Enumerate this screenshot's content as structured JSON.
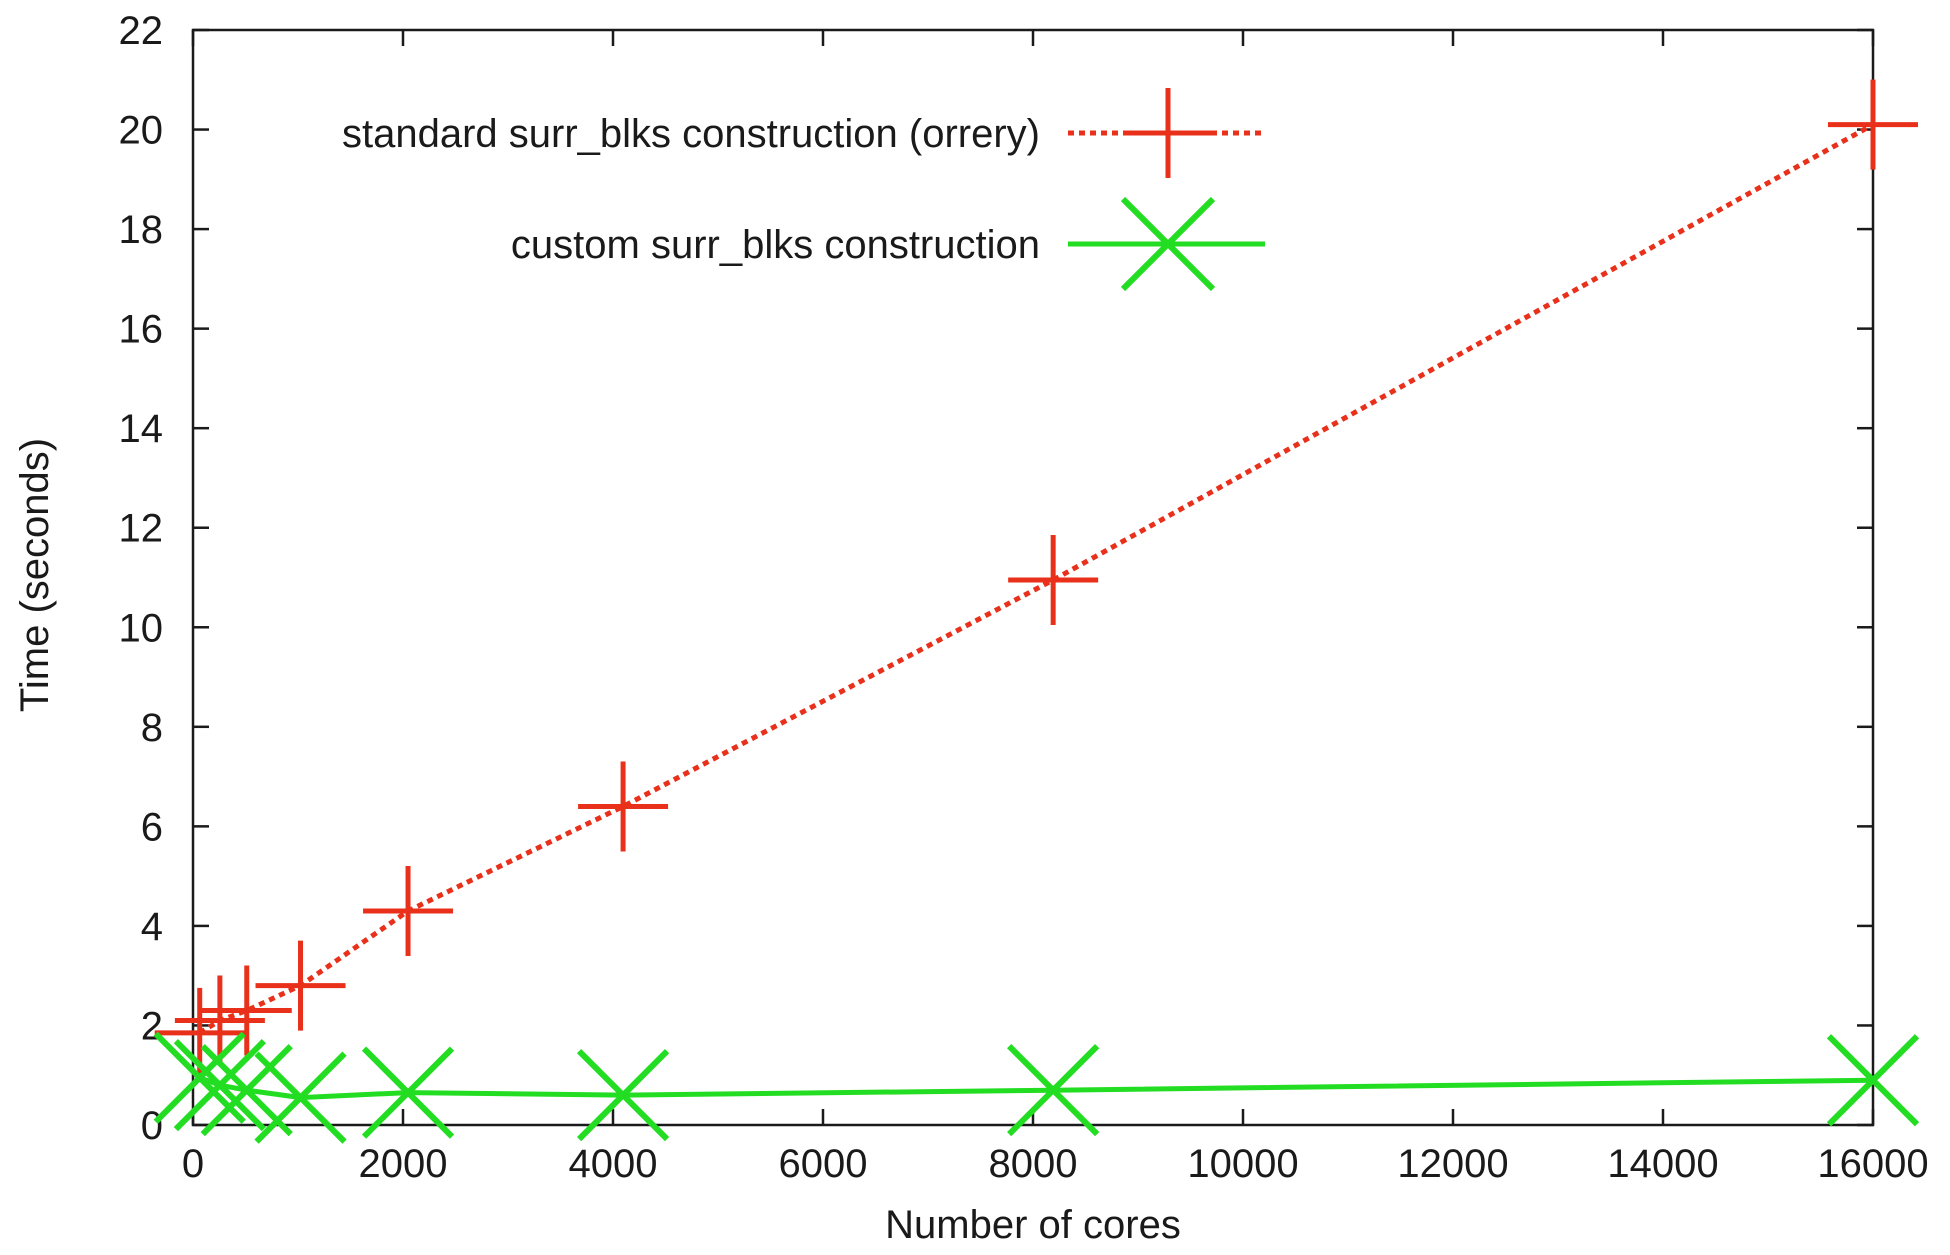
{
  "chart_data": {
    "type": "line",
    "title": "",
    "xlabel": "Number of cores",
    "ylabel": "Time (seconds)",
    "xlim": [
      0,
      16000
    ],
    "ylim": [
      0,
      22
    ],
    "x_ticks": [
      0,
      2000,
      4000,
      6000,
      8000,
      10000,
      12000,
      14000,
      16000
    ],
    "y_ticks": [
      0,
      2,
      4,
      6,
      8,
      10,
      12,
      14,
      16,
      18,
      20,
      22
    ],
    "grid": false,
    "legend_position": "top-left",
    "series": [
      {
        "name": "standard surr_blks construction (orrery)",
        "color": "#e8301a",
        "line_style": "dotted",
        "marker": "plus",
        "points": [
          [
            64,
            1.85
          ],
          [
            256,
            2.1
          ],
          [
            512,
            2.3
          ],
          [
            1024,
            2.8
          ],
          [
            2048,
            4.3
          ],
          [
            4096,
            6.4
          ],
          [
            8192,
            10.95
          ],
          [
            16000,
            20.1
          ]
        ]
      },
      {
        "name": "custom surr_blks construction",
        "color": "#22dd22",
        "line_style": "solid",
        "marker": "cross",
        "points": [
          [
            64,
            0.95
          ],
          [
            256,
            0.8
          ],
          [
            512,
            0.7
          ],
          [
            1024,
            0.55
          ],
          [
            2048,
            0.65
          ],
          [
            4096,
            0.6
          ],
          [
            8192,
            0.7
          ],
          [
            16000,
            0.9
          ]
        ]
      }
    ]
  }
}
